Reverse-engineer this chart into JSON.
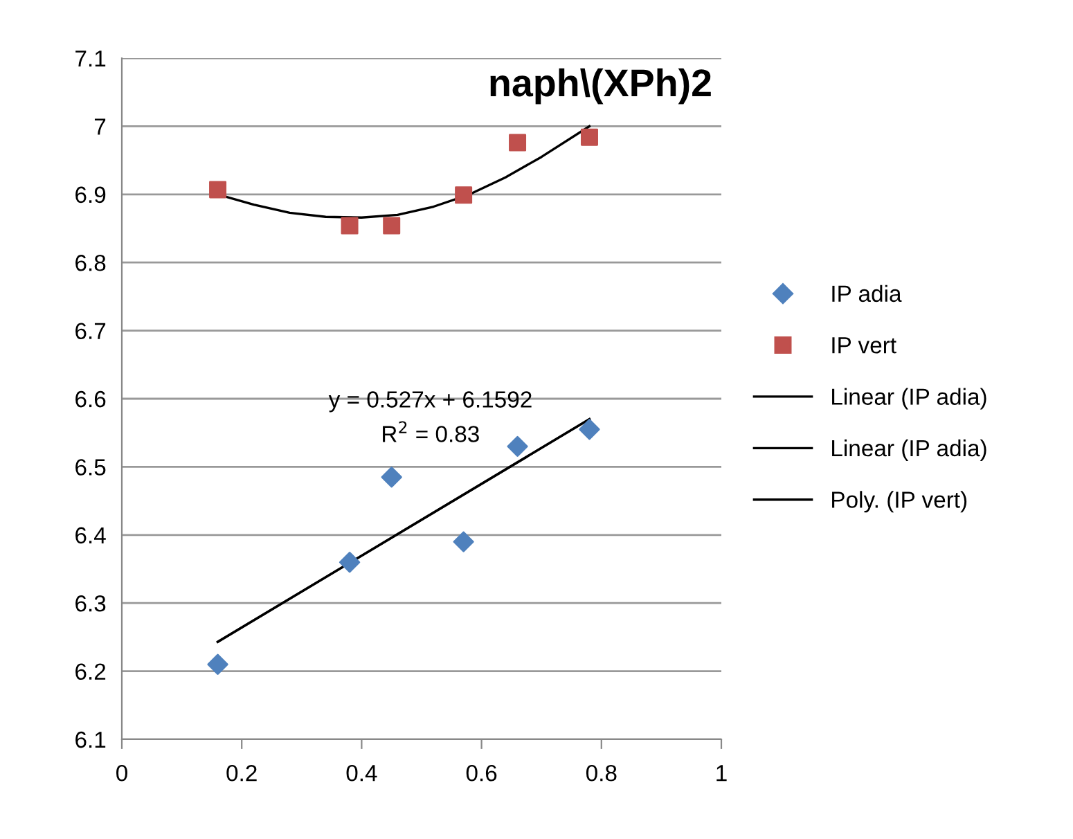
{
  "chart_data": {
    "type": "scatter",
    "title": "naph\\(XPh)2",
    "xlim": [
      0,
      1
    ],
    "xticks": [
      0,
      0.2,
      0.4,
      0.6,
      0.8,
      1
    ],
    "ylim": [
      6.1,
      7.1
    ],
    "yticks": [
      6.1,
      6.2,
      6.3,
      6.4,
      6.5,
      6.6,
      6.7,
      6.8,
      6.9,
      7,
      7.1
    ],
    "grid": "y",
    "legend": "right",
    "series": [
      {
        "name": "IP adia",
        "marker": "diamond",
        "color": "#4f81bd",
        "x": [
          0.16,
          0.38,
          0.45,
          0.57,
          0.66,
          0.78
        ],
        "values": [
          6.21,
          6.36,
          6.485,
          6.39,
          6.53,
          6.555
        ]
      },
      {
        "name": "IP vert",
        "marker": "square",
        "color": "#c0504d",
        "x": [
          0.16,
          0.38,
          0.45,
          0.57,
          0.66,
          0.78
        ],
        "values": [
          6.907,
          6.854,
          6.854,
          6.899,
          6.976,
          6.984
        ]
      },
      {
        "name": "Linear (IP adia)",
        "type": "line",
        "marker": "none",
        "color": "#000000",
        "x": [
          0.16,
          0.78
        ],
        "values": [
          6.243,
          6.57
        ]
      },
      {
        "name": "Linear (IP adia)",
        "type": "line",
        "marker": "none",
        "color": "#000000",
        "x": [
          0.16,
          0.78
        ],
        "values": [
          6.243,
          6.57
        ]
      },
      {
        "name": "Poly. (IP vert)",
        "type": "line",
        "marker": "none",
        "color": "#000000",
        "x": [
          0.16,
          0.22,
          0.28,
          0.34,
          0.4,
          0.46,
          0.52,
          0.58,
          0.64,
          0.7,
          0.78
        ],
        "values": [
          6.9,
          6.885,
          6.873,
          6.867,
          6.866,
          6.87,
          6.882,
          6.9,
          6.925,
          6.955,
          7.0
        ]
      }
    ],
    "annotations": [
      "y = 0.527x + 6.1592",
      "R$^{2}$ = 0.83"
    ]
  }
}
